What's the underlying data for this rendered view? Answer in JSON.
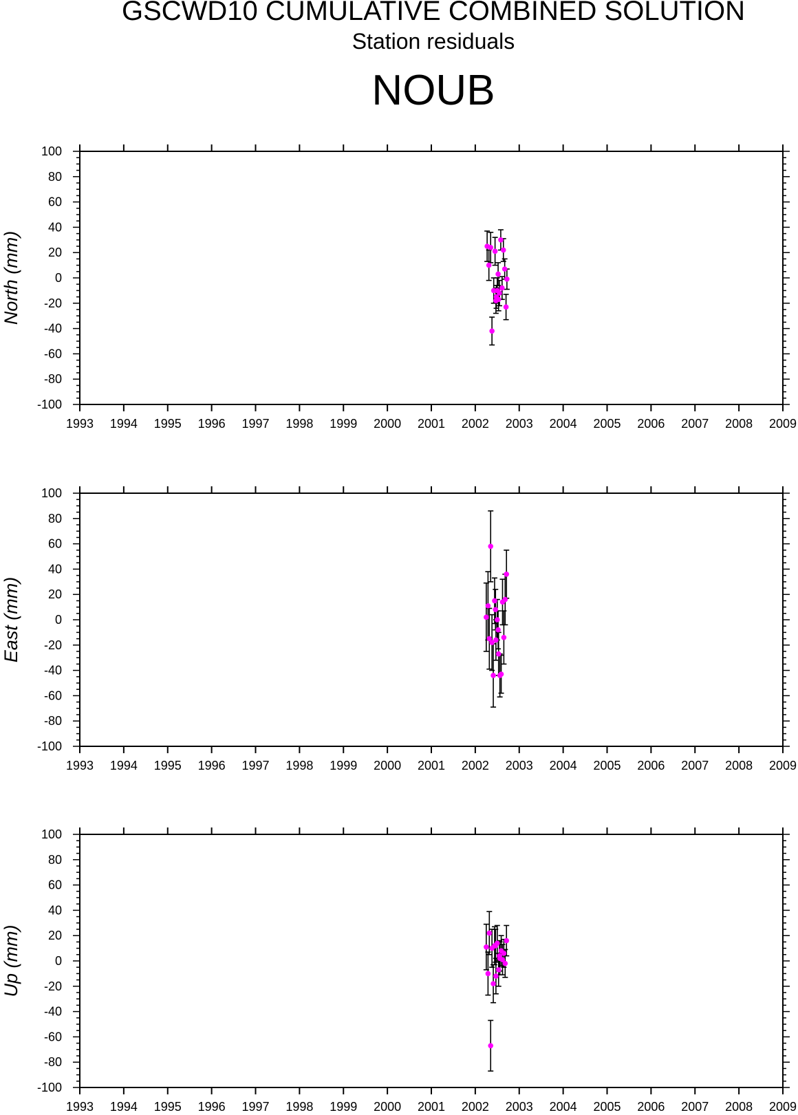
{
  "title": "GSCWD10 CUMULATIVE COMBINED SOLUTION",
  "subtitle": "Station residuals",
  "station": "NOUB",
  "colors": {
    "point": "#ff00ff",
    "errorbar": "#000000",
    "axis": "#000000"
  },
  "chart_data": [
    {
      "type": "scatter",
      "ylabel": "North (mm)",
      "xlim": [
        1993,
        2009
      ],
      "ylim": [
        -100,
        100
      ],
      "x_ticks": [
        "1993",
        "1994",
        "1995",
        "1996",
        "1997",
        "1998",
        "1999",
        "2000",
        "2001",
        "2002",
        "2003",
        "2004",
        "2005",
        "2006",
        "2007",
        "2008",
        "2009"
      ],
      "y_ticks": [
        "100",
        "80",
        "60",
        "40",
        "20",
        "0",
        "-20",
        "-40",
        "-60",
        "-80",
        "-100"
      ],
      "series": [
        {
          "x": [
            2002.27,
            2002.31,
            2002.35,
            2002.38,
            2002.42,
            2002.45,
            2002.47,
            2002.5,
            2002.52,
            2002.55,
            2002.58,
            2002.61,
            2002.64,
            2002.67,
            2002.7,
            2002.72,
            2002.48,
            2002.53
          ],
          "y": [
            25,
            10,
            24,
            -42,
            -10,
            21,
            -18,
            -10,
            3,
            -12,
            30,
            -8,
            22,
            7,
            -23,
            -1,
            -15,
            -17
          ],
          "err": [
            12,
            12,
            12,
            11,
            10,
            11,
            10,
            10,
            9,
            10,
            8,
            9,
            9,
            8,
            10,
            8,
            9,
            9
          ]
        }
      ]
    },
    {
      "type": "scatter",
      "ylabel": "East (mm)",
      "xlim": [
        1993,
        2009
      ],
      "ylim": [
        -100,
        100
      ],
      "x_ticks": [
        "1993",
        "1994",
        "1995",
        "1996",
        "1997",
        "1998",
        "1999",
        "2000",
        "2001",
        "2002",
        "2003",
        "2004",
        "2005",
        "2006",
        "2007",
        "2008",
        "2009"
      ],
      "y_ticks": [
        "100",
        "80",
        "60",
        "40",
        "20",
        "0",
        "-20",
        "-40",
        "-60",
        "-80",
        "-100"
      ],
      "series": [
        {
          "x": [
            2002.25,
            2002.29,
            2002.32,
            2002.35,
            2002.38,
            2002.41,
            2002.44,
            2002.47,
            2002.5,
            2002.53,
            2002.56,
            2002.59,
            2002.62,
            2002.65,
            2002.68,
            2002.71,
            2002.46,
            2002.52
          ],
          "y": [
            2,
            11,
            -15,
            58,
            -18,
            -44,
            15,
            -16,
            0,
            -27,
            -44,
            -43,
            14,
            -14,
            16,
            36,
            8,
            -8
          ],
          "err": [
            27,
            27,
            24,
            28,
            22,
            25,
            18,
            16,
            16,
            17,
            17,
            15,
            18,
            21,
            20,
            19,
            16,
            15
          ]
        }
      ]
    },
    {
      "type": "scatter",
      "ylabel": "Up (mm)",
      "xlim": [
        1993,
        2009
      ],
      "ylim": [
        -100,
        100
      ],
      "x_ticks": [
        "1993",
        "1994",
        "1995",
        "1996",
        "1997",
        "1998",
        "1999",
        "2000",
        "2001",
        "2002",
        "2003",
        "2004",
        "2005",
        "2006",
        "2007",
        "2008",
        "2009"
      ],
      "y_ticks": [
        "100",
        "80",
        "60",
        "40",
        "20",
        "0",
        "-20",
        "-40",
        "-60",
        "-80",
        "-100"
      ],
      "series": [
        {
          "x": [
            2002.25,
            2002.29,
            2002.32,
            2002.35,
            2002.38,
            2002.41,
            2002.44,
            2002.47,
            2002.5,
            2002.53,
            2002.56,
            2002.59,
            2002.62,
            2002.65,
            2002.68,
            2002.71,
            2002.46,
            2002.55
          ],
          "y": [
            11,
            -10,
            22,
            -67,
            10,
            -18,
            12,
            -12,
            14,
            -7,
            2,
            8,
            1,
            6,
            -2,
            16,
            12,
            4
          ],
          "err": [
            18,
            17,
            17,
            20,
            15,
            15,
            15,
            14,
            14,
            13,
            13,
            12,
            12,
            11,
            11,
            12,
            13,
            12
          ]
        }
      ]
    }
  ]
}
